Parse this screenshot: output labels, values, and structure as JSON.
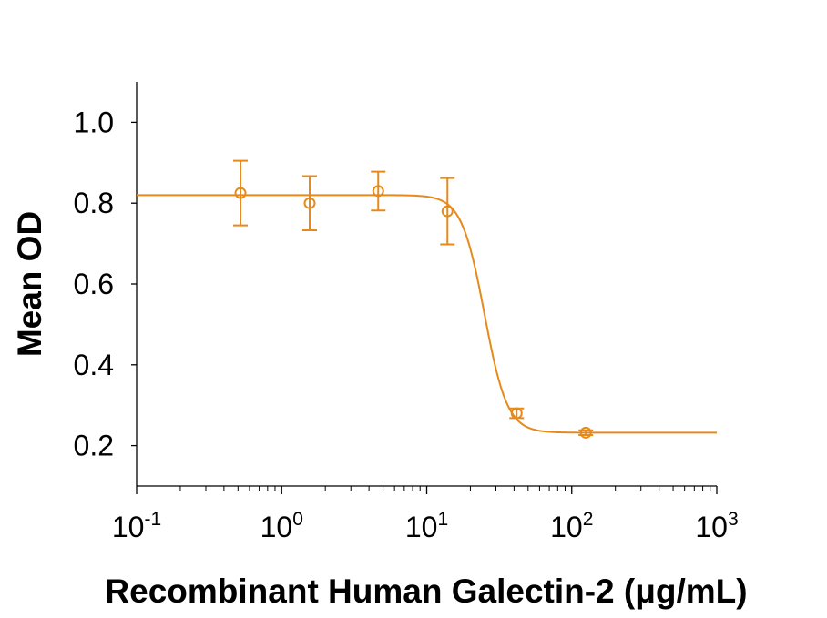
{
  "chart_data": {
    "type": "scatter",
    "xlabel": "Recombinant Human Galectin-2 (μg/mL)",
    "ylabel": "Mean OD",
    "x_scale": "log",
    "xlim": [
      0.1,
      1000
    ],
    "ylim": [
      0.1,
      1.1
    ],
    "x_ticks": [
      {
        "value": 0.1,
        "base": "10",
        "exp": "-1"
      },
      {
        "value": 1,
        "base": "10",
        "exp": "0"
      },
      {
        "value": 10,
        "base": "10",
        "exp": "1"
      },
      {
        "value": 100,
        "base": "10",
        "exp": "2"
      },
      {
        "value": 1000,
        "base": "10",
        "exp": "3"
      }
    ],
    "y_ticks": [
      {
        "value": 0.2,
        "label": "0.2"
      },
      {
        "value": 0.4,
        "label": "0.4"
      },
      {
        "value": 0.6,
        "label": "0.6"
      },
      {
        "value": 0.8,
        "label": "0.8"
      },
      {
        "value": 1.0,
        "label": "1.0"
      }
    ],
    "color": "#E58A1B",
    "points": [
      {
        "x": 0.52,
        "y": 0.825,
        "err": 0.08
      },
      {
        "x": 1.56,
        "y": 0.8,
        "err": 0.067
      },
      {
        "x": 4.63,
        "y": 0.83,
        "err": 0.048
      },
      {
        "x": 13.9,
        "y": 0.78,
        "err": 0.082
      },
      {
        "x": 41.7,
        "y": 0.28,
        "err": 0.012
      },
      {
        "x": 125,
        "y": 0.232,
        "err": 0.006
      }
    ],
    "fit": {
      "model": "4PL",
      "top": 0.82,
      "bottom": 0.232,
      "ec50": 25,
      "hill": 5.5
    },
    "grid": false,
    "legend": "none"
  }
}
